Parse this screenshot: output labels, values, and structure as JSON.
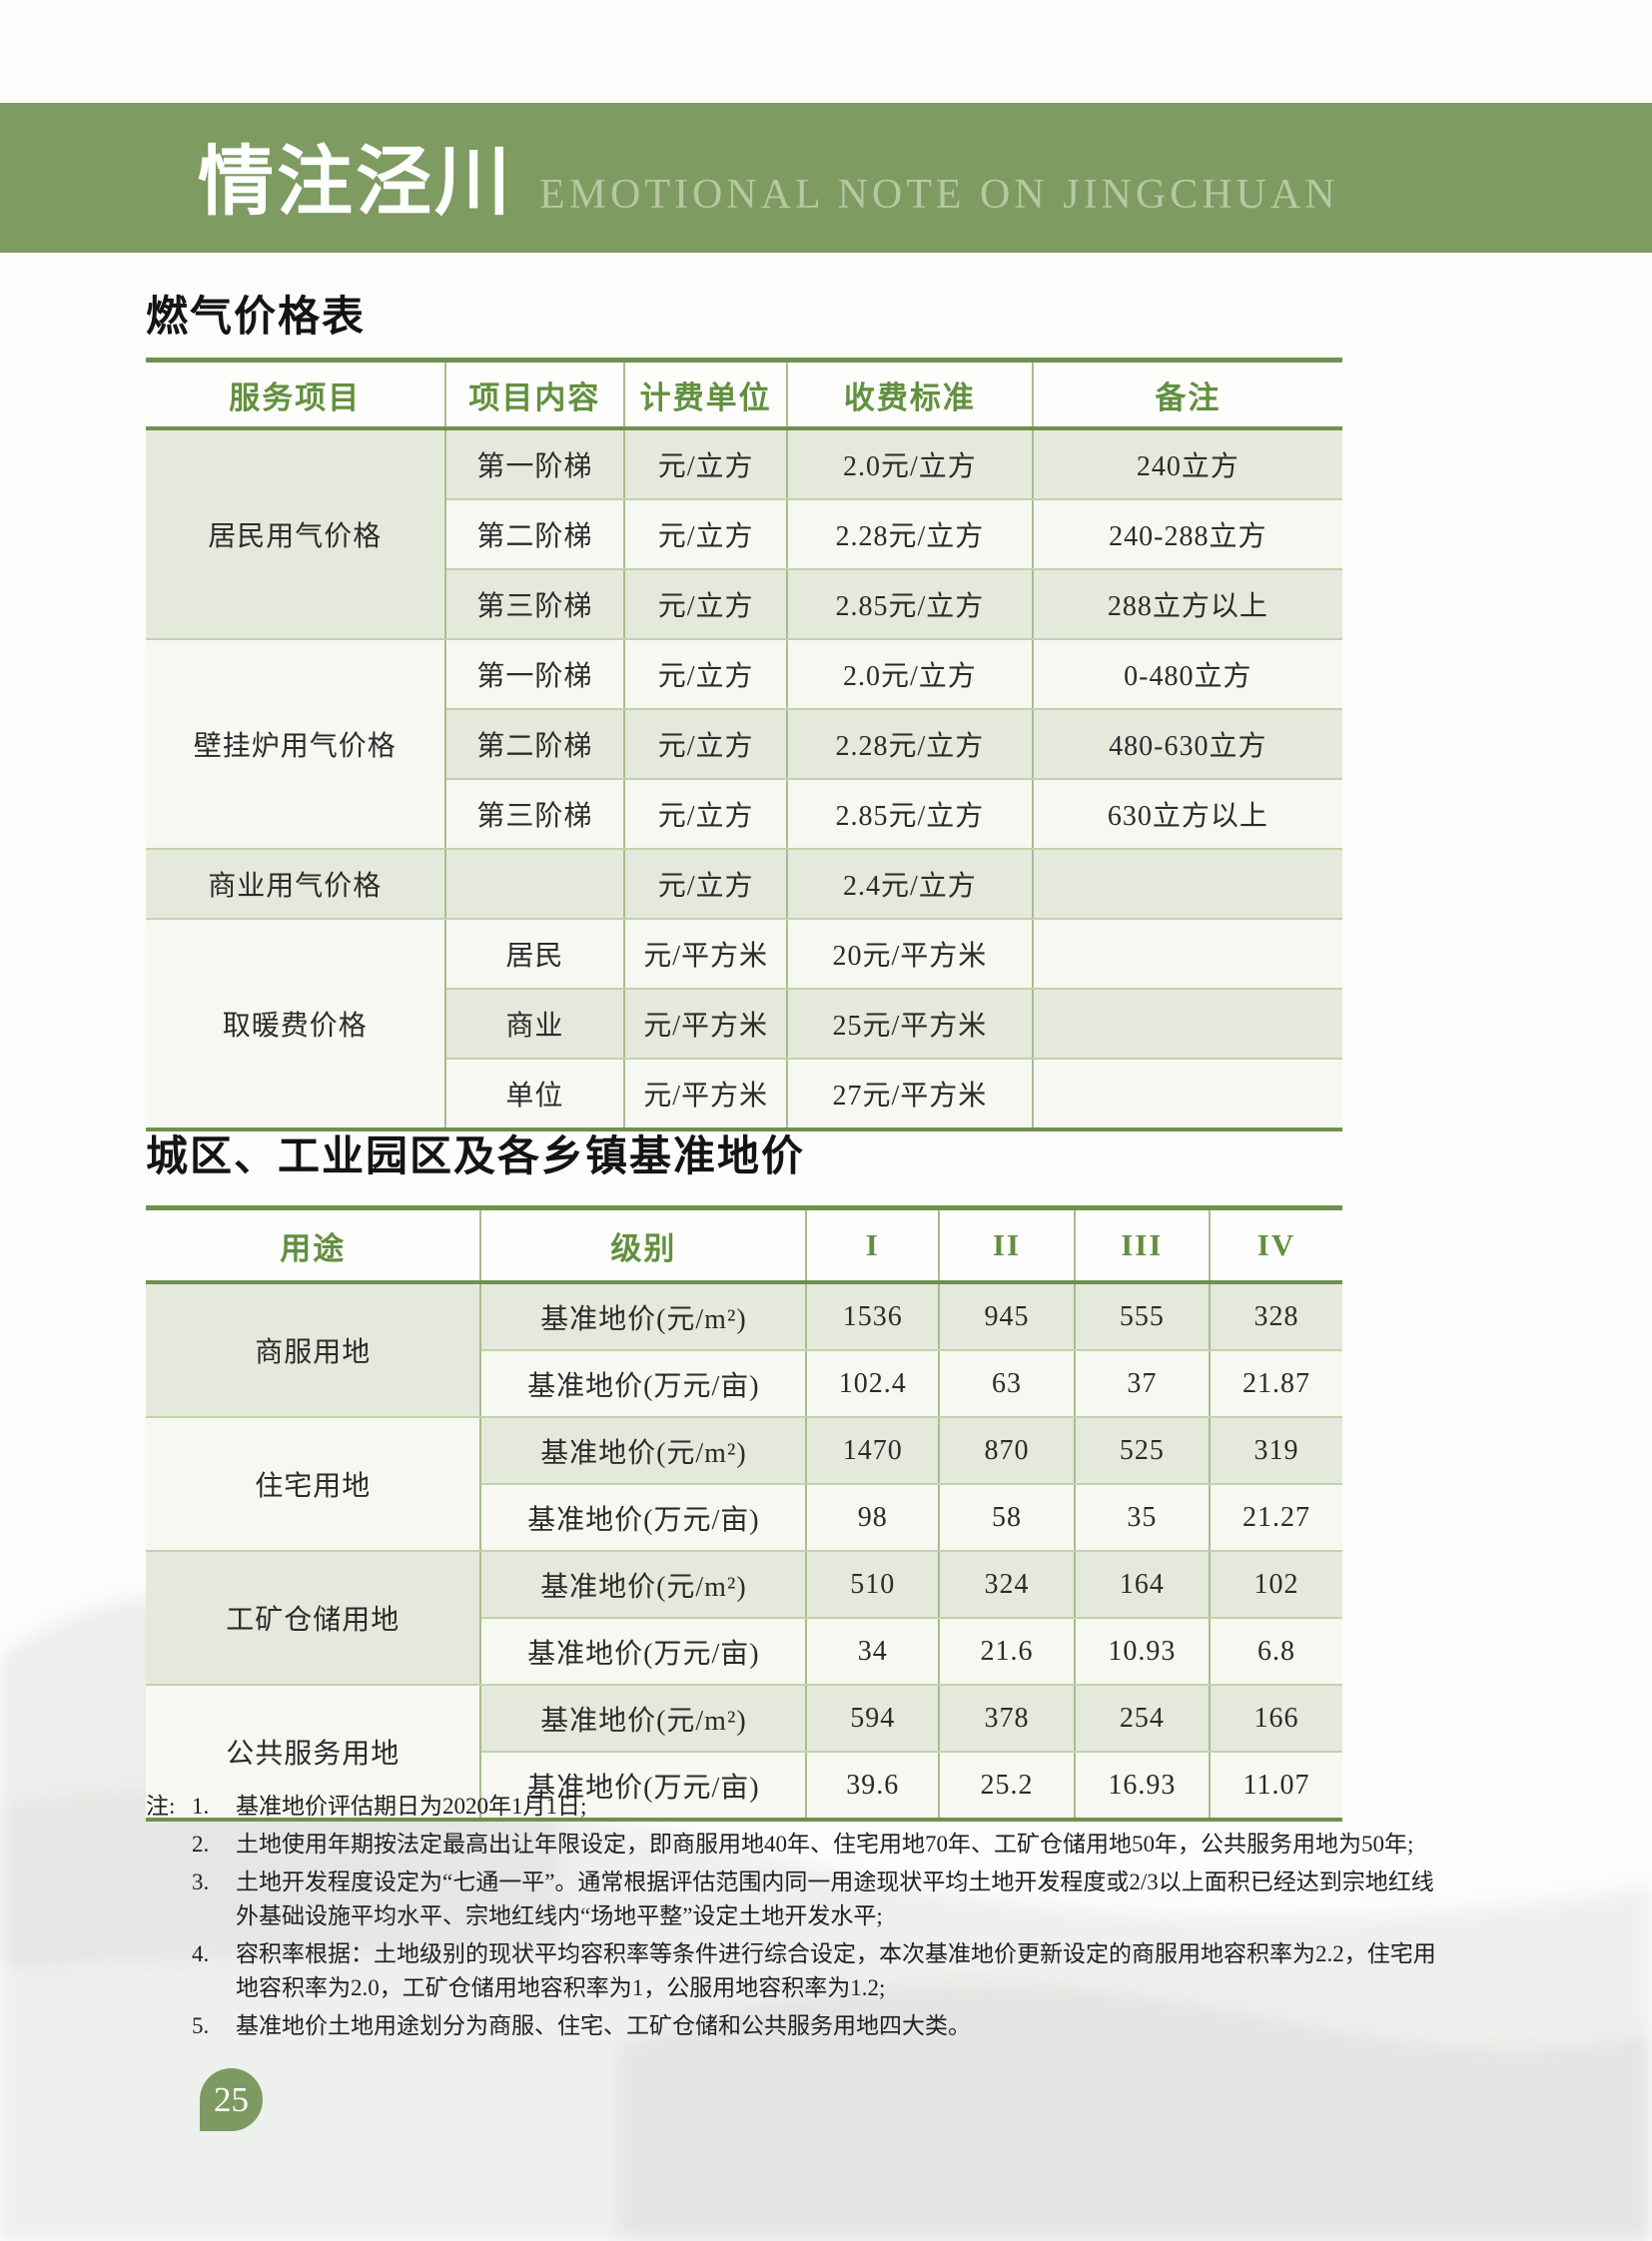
{
  "page_header": {
    "title_cn": "情注泾川",
    "title_en": "EMOTIONAL NOTE ON JINGCHUAN"
  },
  "page_number": "25",
  "colors": {
    "band_green": "#7e9b62",
    "border_green": "#6e9150",
    "group_line": "#8aa76c",
    "grid_line": "#a8bc90",
    "row_light": "#e5e9dc",
    "row_white": "#f6f8f1",
    "head_text": "#62903f",
    "pin_green": "#7d9a62"
  },
  "gas_table": {
    "title": "燃气价格表",
    "headers": [
      "服务项目",
      "项目内容",
      "计费单位",
      "收费标准",
      "备注"
    ],
    "groups": [
      {
        "label": "居民用气价格",
        "rows": [
          [
            "第一阶梯",
            "元/立方",
            "2.0元/立方",
            "240立方"
          ],
          [
            "第二阶梯",
            "元/立方",
            "2.28元/立方",
            "240-288立方"
          ],
          [
            "第三阶梯",
            "元/立方",
            "2.85元/立方",
            "288立方以上"
          ]
        ]
      },
      {
        "label": "壁挂炉用气价格",
        "rows": [
          [
            "第一阶梯",
            "元/立方",
            "2.0元/立方",
            "0-480立方"
          ],
          [
            "第二阶梯",
            "元/立方",
            "2.28元/立方",
            "480-630立方"
          ],
          [
            "第三阶梯",
            "元/立方",
            "2.85元/立方",
            "630立方以上"
          ]
        ]
      },
      {
        "label": "商业用气价格",
        "rows": [
          [
            "",
            "元/立方",
            "2.4元/立方",
            ""
          ]
        ]
      },
      {
        "label": "取暖费价格",
        "rows": [
          [
            "居民",
            "元/平方米",
            "20元/平方米",
            ""
          ],
          [
            "商业",
            "元/平方米",
            "25元/平方米",
            ""
          ],
          [
            "单位",
            "元/平方米",
            "27元/平方米",
            ""
          ]
        ]
      }
    ]
  },
  "land_table": {
    "title": "城区、工业园区及各乡镇基准地价",
    "headers": [
      "用途",
      "级别",
      "I",
      "II",
      "III",
      "IV"
    ],
    "groups": [
      {
        "label": "商服用地",
        "rows": [
          [
            "基准地价(元/m²)",
            "1536",
            "945",
            "555",
            "328"
          ],
          [
            "基准地价(万元/亩)",
            "102.4",
            "63",
            "37",
            "21.87"
          ]
        ]
      },
      {
        "label": "住宅用地",
        "rows": [
          [
            "基准地价(元/m²)",
            "1470",
            "870",
            "525",
            "319"
          ],
          [
            "基准地价(万元/亩)",
            "98",
            "58",
            "35",
            "21.27"
          ]
        ]
      },
      {
        "label": "工矿仓储用地",
        "rows": [
          [
            "基准地价(元/m²)",
            "510",
            "324",
            "164",
            "102"
          ],
          [
            "基准地价(万元/亩)",
            "34",
            "21.6",
            "10.93",
            "6.8"
          ]
        ]
      },
      {
        "label": "公共服务用地",
        "rows": [
          [
            "基准地价(元/m²)",
            "594",
            "378",
            "254",
            "166"
          ],
          [
            "基准地价(万元/亩)",
            "39.6",
            "25.2",
            "16.93",
            "11.07"
          ]
        ]
      }
    ]
  },
  "notes": {
    "prefix": "注:",
    "items": [
      "基准地价评估期日为2020年1月1日;",
      "土地使用年期按法定最高出让年限设定，即商服用地40年、住宅用地70年、工矿仓储用地50年，公共服务用地为50年;",
      "土地开发程度设定为“七通一平”。通常根据评估范围内同一用途现状平均土地开发程度或2/3以上面积已经达到宗地红线外基础设施平均水平、宗地红线内“场地平整”设定土地开发水平;",
      "容积率根据：土地级别的现状平均容积率等条件进行综合设定，本次基准地价更新设定的商服用地容积率为2.2，住宅用地容积率为2.0，工矿仓储用地容积率为1，公服用地容积率为1.2;",
      "基准地价土地用途划分为商服、住宅、工矿仓储和公共服务用地四大类。"
    ]
  }
}
